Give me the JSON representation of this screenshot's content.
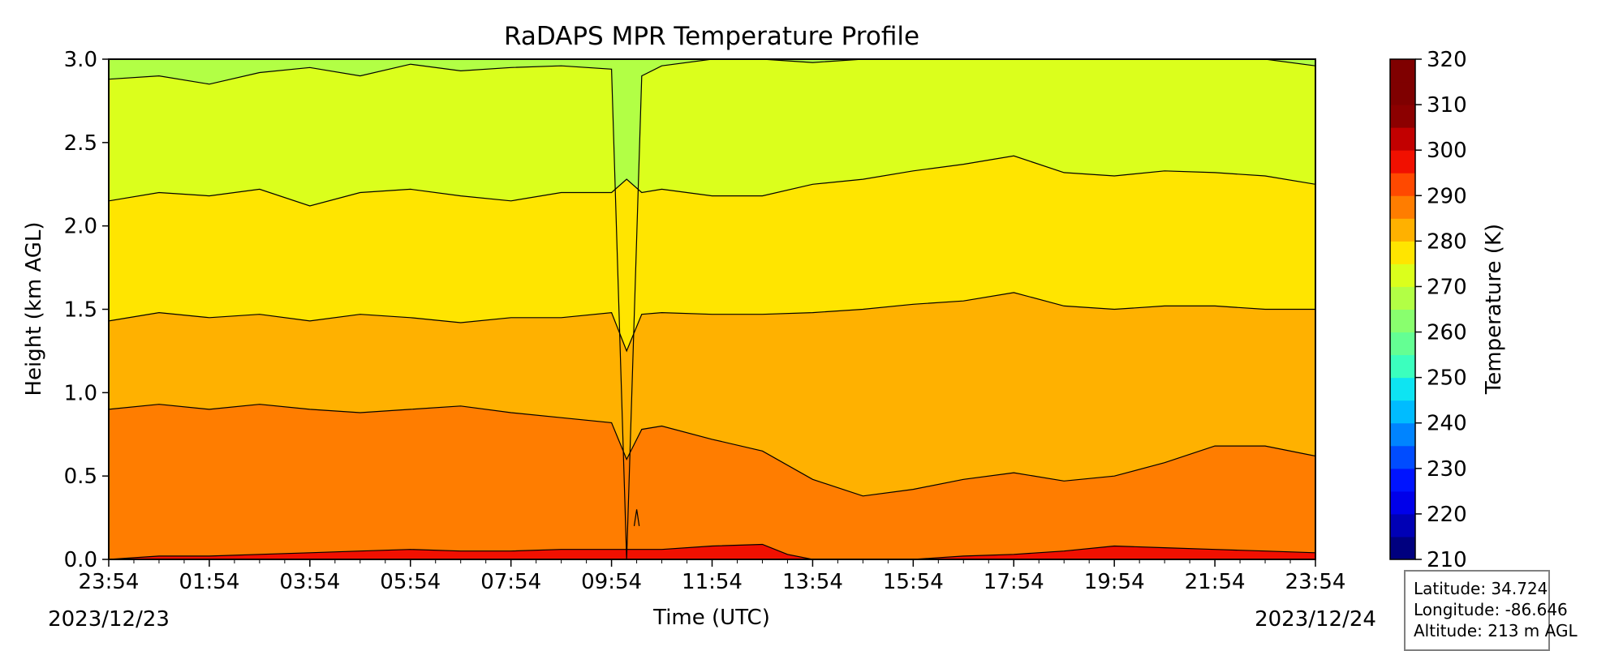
{
  "chart_data": {
    "type": "heatmap",
    "subtype": "filled-contour",
    "title": "RaDAPS MPR Temperature Profile",
    "xlabel": "Time (UTC)",
    "ylabel": "Height (km AGL)",
    "x_tick_labels": [
      "23:54",
      "01:54",
      "03:54",
      "05:54",
      "07:54",
      "09:54",
      "11:54",
      "13:54",
      "15:54",
      "17:54",
      "19:54",
      "21:54",
      "23:54"
    ],
    "x_start_date": "2023/12/23",
    "x_end_date": "2023/12/24",
    "xlim": [
      "2023/12/23 23:54",
      "2023/12/24 23:54"
    ],
    "ylim": [
      0.0,
      3.0
    ],
    "y_ticks": [
      0.0,
      0.5,
      1.0,
      1.5,
      2.0,
      2.5,
      3.0
    ],
    "colorbar": {
      "label": "Temperature (K)",
      "range": [
        210,
        320
      ],
      "ticks": [
        210,
        220,
        230,
        240,
        250,
        260,
        270,
        280,
        290,
        300,
        310,
        320
      ],
      "colormap": "jet",
      "band_colors": [
        "#00007f",
        "#0000b5",
        "#0000ea",
        "#0014ff",
        "#004cff",
        "#0084ff",
        "#00bcff",
        "#0ee4f2",
        "#3bffbe",
        "#64ff93",
        "#89ff6e",
        "#b2ff45",
        "#dbff1c",
        "#ffe500",
        "#ffb100",
        "#ff7d00",
        "#ff4900",
        "#f11000",
        "#c20000",
        "#8c0000",
        "#7f0000",
        "#7f0000"
      ]
    },
    "contour_levels_k": [
      265,
      270,
      275,
      280,
      285,
      290
    ],
    "series": [
      {
        "name": "265 K",
        "hours": [
          0,
          1,
          2,
          3,
          4,
          5,
          6,
          7,
          8,
          9,
          10,
          10.3,
          10.6,
          11,
          12,
          13,
          14,
          15,
          16,
          17,
          18,
          19,
          20,
          21,
          22,
          23,
          24
        ],
        "height_km": [
          2.88,
          2.9,
          2.85,
          2.92,
          2.95,
          2.9,
          2.97,
          2.93,
          2.95,
          2.96,
          2.94,
          0.0,
          2.9,
          2.96,
          3.0,
          3.0,
          2.98,
          3.0,
          3.0,
          3.0,
          3.0,
          3.0,
          3.0,
          3.0,
          3.0,
          3.0,
          2.96
        ]
      },
      {
        "name": "270 K",
        "hours": [
          0,
          1,
          2,
          3,
          4,
          5,
          6,
          7,
          8,
          9,
          10,
          10.3,
          10.6,
          11,
          12,
          13,
          14,
          15,
          16,
          17,
          18,
          19,
          20,
          21,
          22,
          23,
          24
        ],
        "height_km": [
          2.15,
          2.2,
          2.18,
          2.22,
          2.12,
          2.2,
          2.22,
          2.18,
          2.15,
          2.2,
          2.2,
          2.28,
          2.2,
          2.22,
          2.18,
          2.18,
          2.25,
          2.28,
          2.33,
          2.37,
          2.42,
          2.32,
          2.3,
          2.33,
          2.32,
          2.3,
          2.25
        ]
      },
      {
        "name": "275 K",
        "hours": [
          0,
          1,
          2,
          3,
          4,
          5,
          6,
          7,
          8,
          9,
          10,
          10.3,
          10.6,
          11,
          12,
          13,
          14,
          15,
          16,
          17,
          18,
          19,
          20,
          21,
          22,
          23,
          24
        ],
        "height_km": [
          1.43,
          1.48,
          1.45,
          1.47,
          1.43,
          1.47,
          1.45,
          1.42,
          1.45,
          1.45,
          1.48,
          1.25,
          1.47,
          1.48,
          1.47,
          1.47,
          1.48,
          1.5,
          1.53,
          1.55,
          1.6,
          1.52,
          1.5,
          1.52,
          1.52,
          1.5,
          1.5
        ]
      },
      {
        "name": "280 K",
        "hours": [
          0,
          1,
          2,
          3,
          4,
          5,
          6,
          7,
          8,
          9,
          10,
          10.3,
          10.6,
          11,
          12,
          13,
          14,
          15,
          16,
          17,
          18,
          19,
          20,
          21,
          22,
          23,
          24
        ],
        "height_km": [
          0.9,
          0.93,
          0.9,
          0.93,
          0.9,
          0.88,
          0.9,
          0.92,
          0.88,
          0.85,
          0.82,
          0.6,
          0.78,
          0.8,
          0.72,
          0.65,
          0.48,
          0.38,
          0.42,
          0.48,
          0.52,
          0.47,
          0.5,
          0.58,
          0.68,
          0.68,
          0.62
        ]
      },
      {
        "name": "285 K",
        "hours": [
          10.45,
          10.5,
          10.55
        ],
        "height_km": [
          0.2,
          0.3,
          0.2
        ]
      },
      {
        "name": "290 K",
        "hours": [
          0,
          1,
          2,
          3,
          4,
          5,
          6,
          7,
          8,
          9,
          10,
          11,
          12,
          13,
          13.5,
          14,
          15,
          16,
          17,
          18,
          19,
          20,
          21,
          22,
          23,
          24
        ],
        "height_km": [
          0.0,
          0.02,
          0.02,
          0.03,
          0.04,
          0.05,
          0.06,
          0.05,
          0.05,
          0.06,
          0.06,
          0.06,
          0.08,
          0.09,
          0.03,
          0.0,
          0.0,
          0.0,
          0.02,
          0.03,
          0.05,
          0.08,
          0.07,
          0.06,
          0.05,
          0.04
        ]
      }
    ]
  },
  "info_box": {
    "latitude": "Latitude: 34.724",
    "longitude": "Longitude: -86.646",
    "altitude": "Altitude: 213 m AGL"
  }
}
